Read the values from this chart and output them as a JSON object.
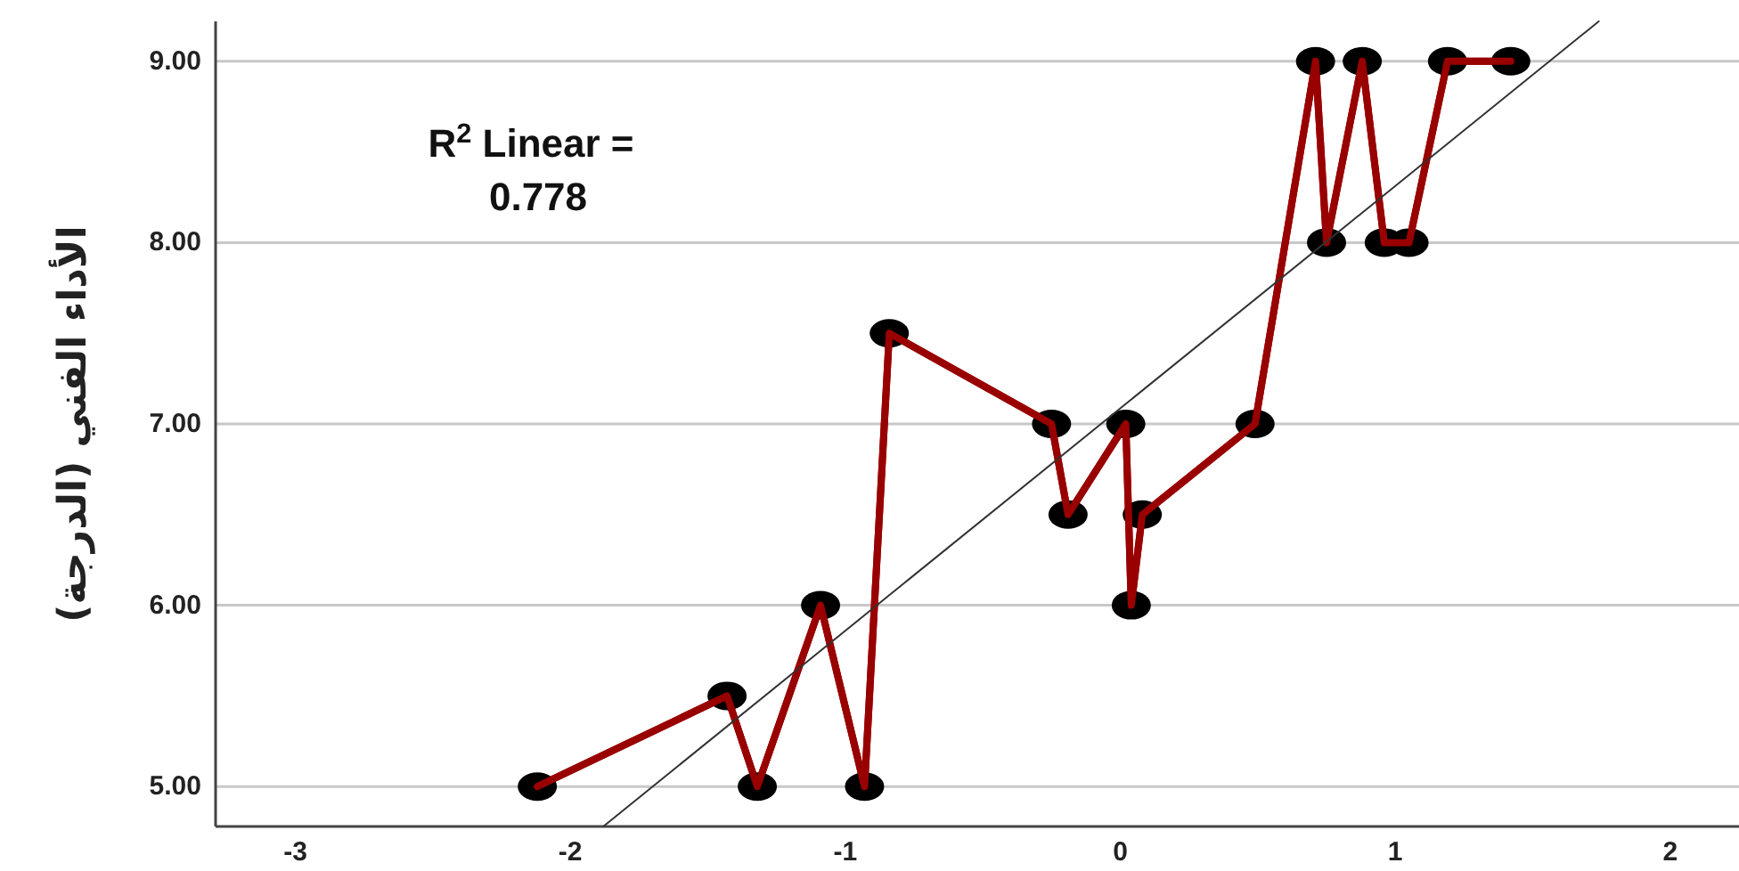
{
  "chart_data": {
    "type": "line",
    "ylabel": "الأداء الفني (الدرجة)",
    "annotations": [
      "R$^{2}$ Linear = 0.778"
    ],
    "xlim": [
      -3.29,
      2.25
    ],
    "ylim": [
      4.78,
      9.22
    ],
    "xticks": [
      -3,
      -2,
      -1,
      0,
      1,
      2
    ],
    "yticks": [
      {
        "value": 5,
        "label": "5.00"
      },
      {
        "value": 6,
        "label": "6.00"
      },
      {
        "value": 7,
        "label": "7.00"
      },
      {
        "value": 8,
        "label": "8.00"
      },
      {
        "value": 9,
        "label": "9.00"
      }
    ],
    "grid": "y",
    "marker": "circle",
    "line_style": "solid",
    "series": [
      {
        "color": "#990000",
        "x": [
          -2.12,
          -1.43,
          -1.32,
          -1.09,
          -0.93,
          -0.84,
          -0.25,
          -0.19,
          0.02,
          0.04,
          0.08,
          0.49,
          0.71,
          0.75,
          0.88,
          0.96,
          1.05,
          1.19,
          1.42
        ],
        "values": [
          5,
          5.5,
          5,
          6,
          5,
          7.5,
          7,
          6.5,
          7,
          6,
          6.5,
          7,
          9,
          8,
          9,
          8,
          8,
          9,
          9
        ]
      },
      {
        "type": "line",
        "marker": "none",
        "color": "#333333",
        "x": [
          -1.88,
          1.74
        ],
        "values": [
          4.78,
          9.22
        ]
      }
    ]
  }
}
